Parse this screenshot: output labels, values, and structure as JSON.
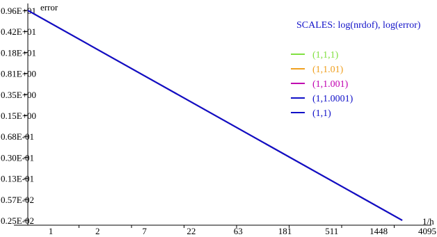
{
  "chart_data": {
    "type": "line",
    "scales_note": "SCALES: log(nrdof), log(error)",
    "xlabel": "1/h",
    "ylabel": "error",
    "x_scale": "log",
    "y_scale": "log",
    "grid": false,
    "legend_position": "top-right",
    "x_ticks": [
      "1",
      "2",
      "7",
      "22",
      "63",
      "181",
      "511",
      "1448",
      "4095"
    ],
    "y_ticks": [
      "0.96E+01",
      "0.42E+01",
      "0.18E+01",
      "0.81E+00",
      "0.35E+00",
      "0.15E+00",
      "0.68E-01",
      "0.30E-01",
      "0.13E-01",
      "0.57E-02",
      "0.25E-02"
    ],
    "series": [
      {
        "name": "(1,1,1)",
        "color": "#80e040",
        "points": [
          [
            1,
            9.6
          ],
          [
            4095,
            0.0025
          ]
        ]
      },
      {
        "name": "(1,1.01)",
        "color": "#f0a020",
        "points": [
          [
            1,
            9.6
          ],
          [
            4095,
            0.0025
          ]
        ]
      },
      {
        "name": "(1,1.001)",
        "color": "#c000b0",
        "points": [
          [
            1,
            9.6
          ],
          [
            4095,
            0.0025
          ]
        ]
      },
      {
        "name": "(1,1.0001)",
        "color": "#1010c8",
        "points": [
          [
            1,
            9.6
          ],
          [
            4095,
            0.0025
          ]
        ]
      },
      {
        "name": "(1,1)",
        "color": "#1010c8",
        "points": [
          [
            1,
            9.6
          ],
          [
            4095,
            0.0025
          ]
        ]
      }
    ]
  }
}
